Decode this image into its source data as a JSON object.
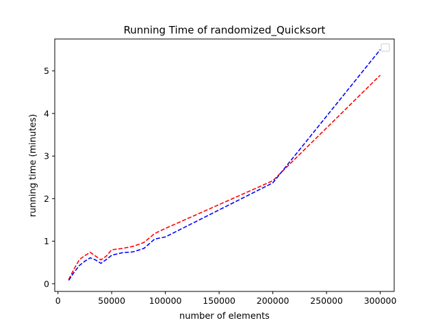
{
  "chart_data": {
    "type": "line",
    "title": "Running Time of randomized_Quicksort",
    "xlabel": "number of elements",
    "ylabel": "running time (minutes)",
    "xlim": [
      -3000,
      313000
    ],
    "ylim": [
      -0.18,
      5.75
    ],
    "xticks": [
      0,
      50000,
      100000,
      150000,
      200000,
      250000,
      300000
    ],
    "yticks": [
      0,
      1,
      2,
      3,
      4,
      5
    ],
    "grid": false,
    "legend": "top-right",
    "series": [
      {
        "color": "#ff0000",
        "style": "dashed",
        "x": [
          10000,
          15000,
          20000,
          25000,
          30000,
          35000,
          40000,
          45000,
          50000,
          60000,
          70000,
          80000,
          90000,
          100000,
          200000,
          300000
        ],
        "y": [
          0.1,
          0.35,
          0.57,
          0.66,
          0.74,
          0.65,
          0.56,
          0.65,
          0.8,
          0.83,
          0.88,
          0.97,
          1.18,
          1.3,
          2.42,
          4.9
        ]
      },
      {
        "color": "#0000ff",
        "style": "dashed",
        "x": [
          10000,
          15000,
          20000,
          25000,
          30000,
          35000,
          40000,
          45000,
          50000,
          60000,
          70000,
          80000,
          90000,
          100000,
          200000,
          300000
        ],
        "y": [
          0.08,
          0.27,
          0.43,
          0.53,
          0.61,
          0.56,
          0.48,
          0.57,
          0.67,
          0.73,
          0.75,
          0.83,
          1.05,
          1.1,
          2.37,
          5.5
        ]
      }
    ]
  }
}
